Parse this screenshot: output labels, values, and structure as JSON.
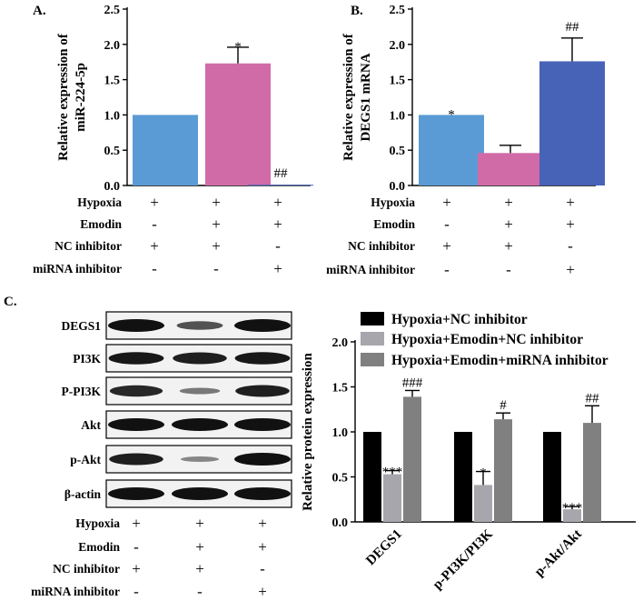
{
  "chart_data": [
    {
      "panel": "A.",
      "type": "bar",
      "ylabel_lines": [
        "Relative expression of",
        "miR-224-5p"
      ],
      "ylim": [
        0,
        2.5
      ],
      "yticks": [
        "0.0",
        "0.5",
        "1.0",
        "1.5",
        "2.0",
        "2.5"
      ],
      "values": [
        1.0,
        1.73,
        0.01
      ],
      "errors": [
        0.0,
        0.23,
        0.0
      ],
      "annotations": [
        "",
        "*",
        "##"
      ],
      "colors": [
        "#5b9bd5",
        "#d16ba8",
        "#4763b8"
      ]
    },
    {
      "panel": "B.",
      "type": "bar",
      "ylabel_lines": [
        "Relative expression of",
        "DEGS1 mRNA"
      ],
      "ylim": [
        0,
        2.5
      ],
      "yticks": [
        "0.0",
        "0.5",
        "1.0",
        "1.5",
        "2.0",
        "2.5"
      ],
      "values": [
        1.0,
        0.46,
        1.76
      ],
      "errors": [
        0.0,
        0.11,
        0.33
      ],
      "annotations": [
        "*",
        "",
        "##"
      ],
      "colors": [
        "#5b9bd5",
        "#d16ba8",
        "#4763b8"
      ]
    },
    {
      "panel": "C.",
      "type": "bar",
      "ylabel": "Relative protein expression",
      "ylim": [
        0,
        2.0
      ],
      "yticks": [
        "0.0",
        "0.5",
        "1.0",
        "1.5",
        "2.0"
      ],
      "categories": [
        "DEGS1",
        "p-PI3K/PI3K",
        "p-Akt/Akt"
      ],
      "series": [
        {
          "name": "Hypoxia+NC inhibitor",
          "color": "#000000",
          "values": [
            1.0,
            1.0,
            1.0
          ],
          "errors": [
            0,
            0,
            0
          ],
          "annotations": [
            "",
            "",
            ""
          ]
        },
        {
          "name": "Hypoxia+Emodin+NC inhibitor",
          "color": "#a6a6ac",
          "values": [
            0.53,
            0.41,
            0.14
          ],
          "errors": [
            0.04,
            0.15,
            0.03
          ],
          "annotations": [
            "***",
            "*",
            "***"
          ]
        },
        {
          "name": "Hypoxia+Emodin+miRNA inhibitor",
          "color": "#808080",
          "values": [
            1.39,
            1.14,
            1.1
          ],
          "errors": [
            0.07,
            0.07,
            0.19
          ],
          "annotations": [
            "###",
            "#",
            "##"
          ]
        }
      ],
      "legend": "top-right"
    }
  ],
  "conditions": {
    "labels": [
      "Hypoxia",
      "Emodin",
      "NC inhibitor",
      "miRNA inhibitor"
    ],
    "signs": [
      [
        "+",
        "+",
        "+"
      ],
      [
        "-",
        "+",
        "+"
      ],
      [
        "+",
        "+",
        "-"
      ],
      [
        "-",
        "-",
        "+"
      ]
    ]
  },
  "blot": {
    "labels": [
      "DEGS1",
      "PI3K",
      "P-PI3K",
      "Akt",
      "p-Akt",
      "β-actin"
    ],
    "intensities": [
      [
        1.0,
        0.55,
        1.0
      ],
      [
        0.95,
        0.9,
        0.95
      ],
      [
        0.85,
        0.3,
        0.9
      ],
      [
        1.0,
        1.0,
        1.0
      ],
      [
        0.9,
        0.2,
        1.0
      ],
      [
        1.0,
        1.0,
        1.0
      ]
    ]
  }
}
